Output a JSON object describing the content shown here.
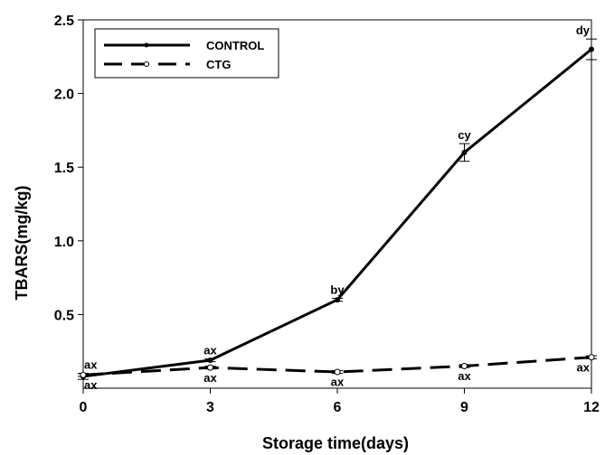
{
  "chart_data": {
    "type": "line",
    "xlabel": "Storage time(days)",
    "ylabel": "TBARS(mg/kg)",
    "x": [
      0,
      3,
      6,
      9,
      12
    ],
    "x_ticks": [
      "0",
      "3",
      "6",
      "9",
      "12"
    ],
    "y_ticks": [
      "0.5",
      "1.0",
      "1.5",
      "2.0",
      "2.5"
    ],
    "xlim": [
      0,
      12
    ],
    "ylim": [
      0,
      2.5
    ],
    "grid": false,
    "legend_position": "top-left",
    "series": [
      {
        "name": "CONTROL",
        "style": "solid",
        "marker": "filled-circle",
        "values": [
          0.08,
          0.19,
          0.6,
          1.6,
          2.3
        ],
        "error": [
          0.02,
          0.01,
          0.01,
          0.06,
          0.07
        ],
        "labels": [
          "ax",
          "ax",
          "by",
          "cy",
          "dy"
        ]
      },
      {
        "name": "CTG",
        "style": "dashed",
        "marker": "open-circle",
        "values": [
          0.09,
          0.14,
          0.11,
          0.15,
          0.21
        ],
        "error": [
          0.01,
          0.01,
          0.01,
          0.01,
          0.01
        ],
        "labels": [
          "ax",
          "ax",
          "ax",
          "ax",
          "ax"
        ]
      }
    ],
    "colors": {
      "line": "#000000",
      "background": "#ffffff"
    }
  }
}
